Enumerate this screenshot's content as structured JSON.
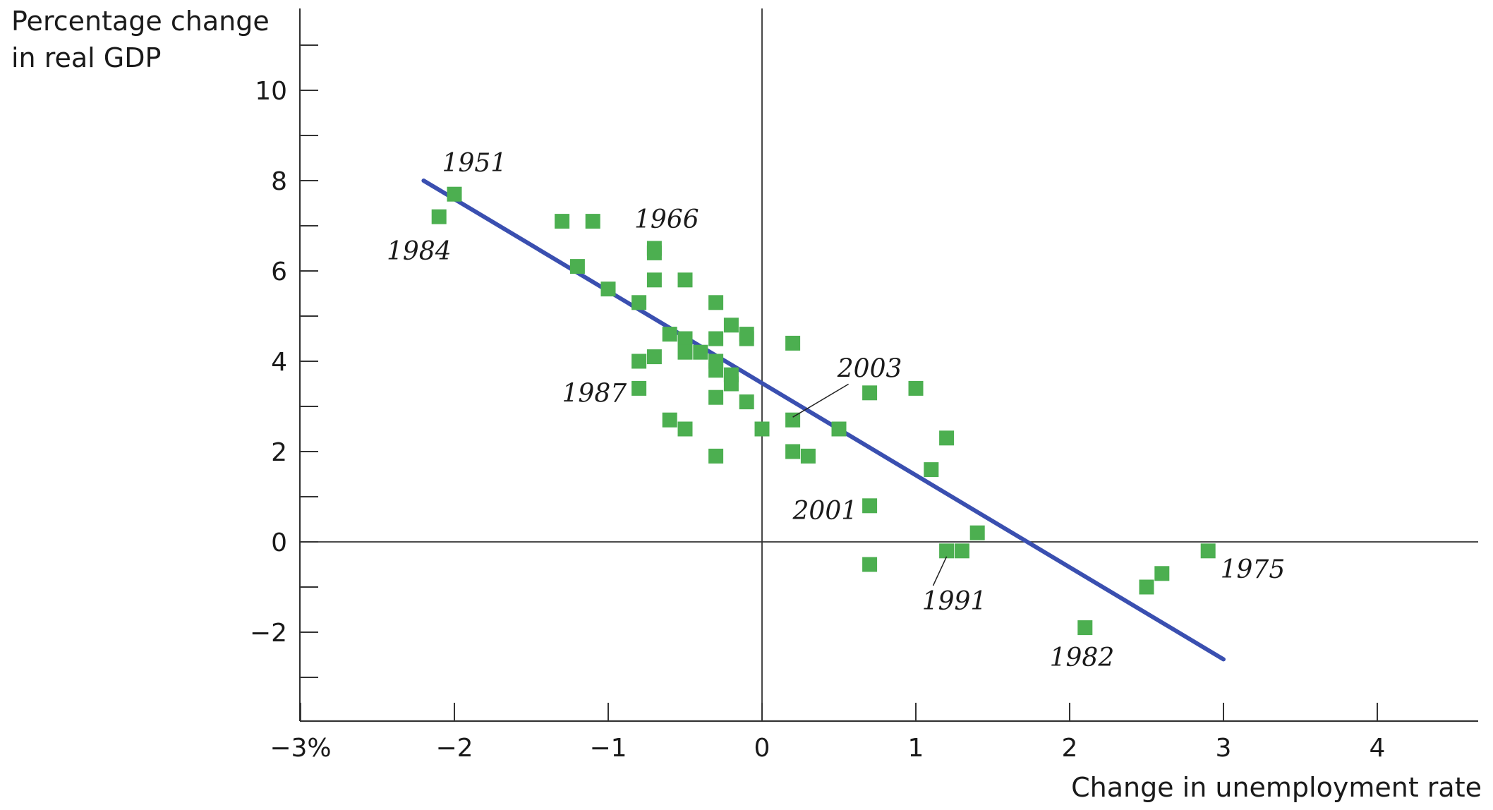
{
  "chart_data": {
    "type": "scatter",
    "ylabel_lines": [
      "Percentage change",
      "in real GDP"
    ],
    "xlabel": "Change in unemployment rate",
    "xlim": [
      -3,
      4.65
    ],
    "ylim": [
      -4,
      11.8
    ],
    "x_ticks": [
      {
        "value": -3,
        "label": "−3%"
      },
      {
        "value": -2,
        "label": "−2"
      },
      {
        "value": -1,
        "label": "−1"
      },
      {
        "value": 0,
        "label": "0"
      },
      {
        "value": 1,
        "label": "1"
      },
      {
        "value": 2,
        "label": "2"
      },
      {
        "value": 3,
        "label": "3"
      },
      {
        "value": 4,
        "label": "4"
      }
    ],
    "y_ticks": [
      {
        "value": -2,
        "label": "−2"
      },
      {
        "value": 0,
        "label": "0"
      },
      {
        "value": 2,
        "label": "2"
      },
      {
        "value": 4,
        "label": "4"
      },
      {
        "value": 6,
        "label": "6"
      },
      {
        "value": 8,
        "label": "8"
      },
      {
        "value": 10,
        "label": "10"
      }
    ],
    "y_minor_ticks": [
      -3,
      -1,
      1,
      3,
      5,
      7,
      9,
      11
    ],
    "point_color": "#4caf50",
    "line_color": "#3a4fb0",
    "points": [
      {
        "x": -2.1,
        "y": 7.2
      },
      {
        "x": -2.0,
        "y": 7.7
      },
      {
        "x": -1.3,
        "y": 7.1
      },
      {
        "x": -1.1,
        "y": 7.1
      },
      {
        "x": -1.2,
        "y": 6.1
      },
      {
        "x": -1.0,
        "y": 5.6
      },
      {
        "x": -0.8,
        "y": 5.3
      },
      {
        "x": -0.7,
        "y": 6.5
      },
      {
        "x": -0.7,
        "y": 6.4
      },
      {
        "x": -0.7,
        "y": 5.8
      },
      {
        "x": -0.5,
        "y": 5.8
      },
      {
        "x": -0.6,
        "y": 4.6
      },
      {
        "x": -0.5,
        "y": 4.5
      },
      {
        "x": -0.5,
        "y": 4.2
      },
      {
        "x": -0.4,
        "y": 4.2
      },
      {
        "x": -0.7,
        "y": 4.1
      },
      {
        "x": -0.8,
        "y": 4.0
      },
      {
        "x": -0.8,
        "y": 3.4
      },
      {
        "x": -0.3,
        "y": 5.3
      },
      {
        "x": -0.3,
        "y": 4.5
      },
      {
        "x": -0.3,
        "y": 4.0
      },
      {
        "x": -0.3,
        "y": 3.8
      },
      {
        "x": -0.3,
        "y": 3.2
      },
      {
        "x": -0.2,
        "y": 4.8
      },
      {
        "x": -0.2,
        "y": 3.7
      },
      {
        "x": -0.2,
        "y": 3.5
      },
      {
        "x": -0.1,
        "y": 4.6
      },
      {
        "x": -0.1,
        "y": 4.5
      },
      {
        "x": -0.1,
        "y": 3.1
      },
      {
        "x": -0.6,
        "y": 2.7
      },
      {
        "x": -0.5,
        "y": 2.5
      },
      {
        "x": -0.3,
        "y": 1.9
      },
      {
        "x": 0.0,
        "y": 2.5
      },
      {
        "x": 0.2,
        "y": 4.4
      },
      {
        "x": 0.2,
        "y": 2.7
      },
      {
        "x": 0.2,
        "y": 2.0
      },
      {
        "x": 0.3,
        "y": 1.9
      },
      {
        "x": 0.5,
        "y": 2.5
      },
      {
        "x": 0.7,
        "y": 3.3
      },
      {
        "x": 1.0,
        "y": 3.4
      },
      {
        "x": 0.7,
        "y": 0.8
      },
      {
        "x": 0.7,
        "y": -0.5
      },
      {
        "x": 1.2,
        "y": 2.3
      },
      {
        "x": 1.1,
        "y": 1.6
      },
      {
        "x": 1.2,
        "y": -0.2
      },
      {
        "x": 1.3,
        "y": -0.2
      },
      {
        "x": 1.4,
        "y": 0.2
      },
      {
        "x": 2.1,
        "y": -1.9
      },
      {
        "x": 2.5,
        "y": -1.0
      },
      {
        "x": 2.6,
        "y": -0.7
      },
      {
        "x": 2.9,
        "y": -0.2
      }
    ],
    "trend_line": {
      "x1": -2.2,
      "y1": 8.0,
      "x2": 3.0,
      "y2": -2.6
    },
    "annotations": [
      {
        "label": "1951",
        "x": -2.0,
        "y": 7.7,
        "anchor": "start",
        "dx": -0.08,
        "dy": 0.5
      },
      {
        "label": "1984",
        "x": -2.1,
        "y": 7.2,
        "anchor": "end",
        "dx": 0.08,
        "dy": -0.95
      },
      {
        "label": "1966",
        "x": -0.7,
        "y": 6.5,
        "anchor": "middle",
        "dx": 0.08,
        "dy": 0.45
      },
      {
        "label": "1987",
        "x": -0.8,
        "y": 3.4,
        "anchor": "end",
        "dx": -0.08,
        "dy": -0.3
      },
      {
        "label": "2003",
        "x": 0.2,
        "y": 2.7,
        "anchor": "middle",
        "dx": 0.5,
        "dy": 0.95,
        "leader": true
      },
      {
        "label": "2001",
        "x": 0.7,
        "y": 0.8,
        "anchor": "end",
        "dx": -0.08,
        "dy": -0.3
      },
      {
        "label": "1991",
        "x": 1.2,
        "y": -0.2,
        "anchor": "middle",
        "dx": 0.05,
        "dy": -1.3,
        "leader": true
      },
      {
        "label": "1982",
        "x": 2.1,
        "y": -1.9,
        "anchor": "middle",
        "dx": -0.02,
        "dy": -0.85
      },
      {
        "label": "1975",
        "x": 2.9,
        "y": -0.2,
        "anchor": "start",
        "dx": 0.08,
        "dy": -0.6
      }
    ]
  }
}
